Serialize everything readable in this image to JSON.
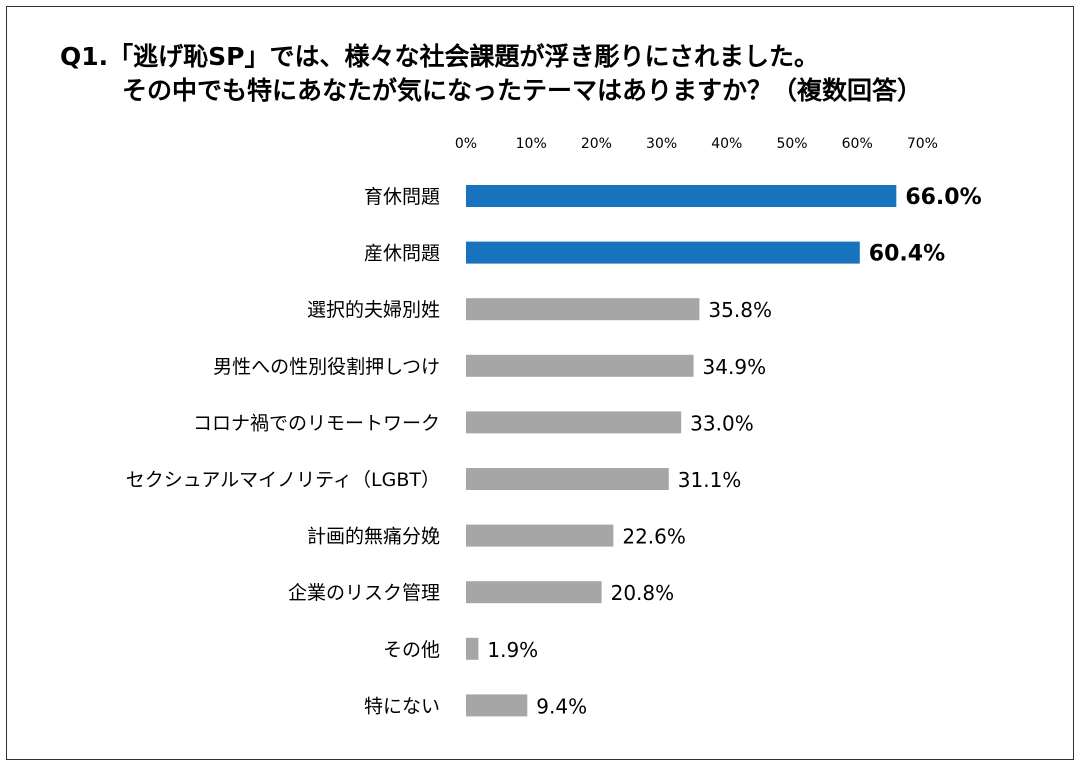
{
  "title": {
    "line1": "Q1.「逃げ恥SP」では、様々な社会課題が浮き彫りにされました。",
    "line2": "その中でも特にあなたが気になったテーマはありますか？（複数回答）"
  },
  "chart_data": {
    "type": "bar",
    "orientation": "horizontal",
    "title": "Q1.「逃げ恥SP」では、様々な社会課題が浮き彫りにされました。その中でも特にあなたが気になったテーマはありますか？（複数回答）",
    "categories": [
      "育休問題",
      "産休問題",
      "選択的夫婦別姓",
      "男性への性別役割押しつけ",
      "コロナ禍でのリモートワーク",
      "セクシュアルマイノリティ（LGBT）",
      "計画的無痛分娩",
      "企業のリスク管理",
      "その他",
      "特にない"
    ],
    "values": [
      66.0,
      60.4,
      35.8,
      34.9,
      33.0,
      31.1,
      22.6,
      20.8,
      1.9,
      9.4
    ],
    "value_labels": [
      "66.0%",
      "60.4%",
      "35.8%",
      "34.9%",
      "33.0%",
      "31.1%",
      "22.6%",
      "20.8%",
      "1.9%",
      "9.4%"
    ],
    "highlight_indices": [
      0,
      1
    ],
    "x_ticks": [
      "0%",
      "10%",
      "20%",
      "30%",
      "40%",
      "50%",
      "60%",
      "70%"
    ],
    "xlim": [
      0,
      70
    ],
    "xlabel": "",
    "ylabel": "",
    "grid": false,
    "legend": "none",
    "colors": {
      "highlight": "#1873BF",
      "normal": "#A6A6A6",
      "text": "#000000"
    }
  }
}
